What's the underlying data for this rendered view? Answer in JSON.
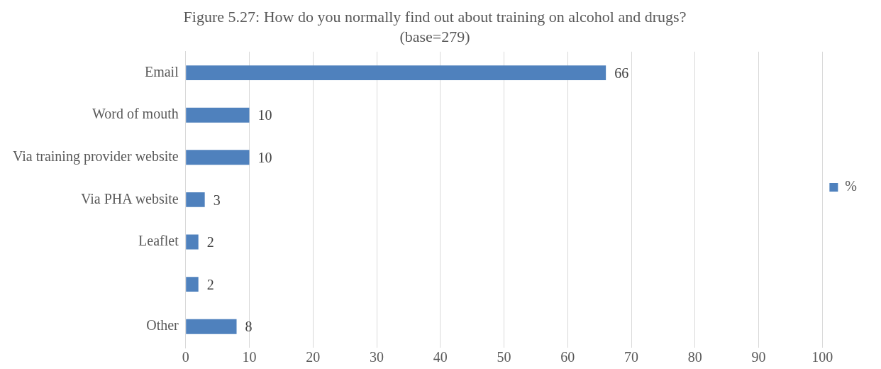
{
  "chart_data": {
    "type": "bar",
    "orientation": "horizontal",
    "title": "Figure 5.27: How do you normally find out about training on alcohol and drugs?",
    "subtitle": "(base=279)",
    "categories": [
      "Email",
      "Word of mouth",
      "Via training provider website",
      "Via PHA website",
      "Leaflet",
      null,
      "Other"
    ],
    "series": [
      {
        "name": "%",
        "color": "#4f81bd",
        "values": [
          66,
          10,
          10,
          3,
          2,
          2,
          8
        ]
      }
    ],
    "xlim": [
      0,
      100
    ],
    "xticks": [
      0,
      10,
      20,
      30,
      40,
      50,
      60,
      70,
      80,
      90,
      100
    ],
    "grid": "x",
    "legend": "right",
    "data_labels": true
  }
}
